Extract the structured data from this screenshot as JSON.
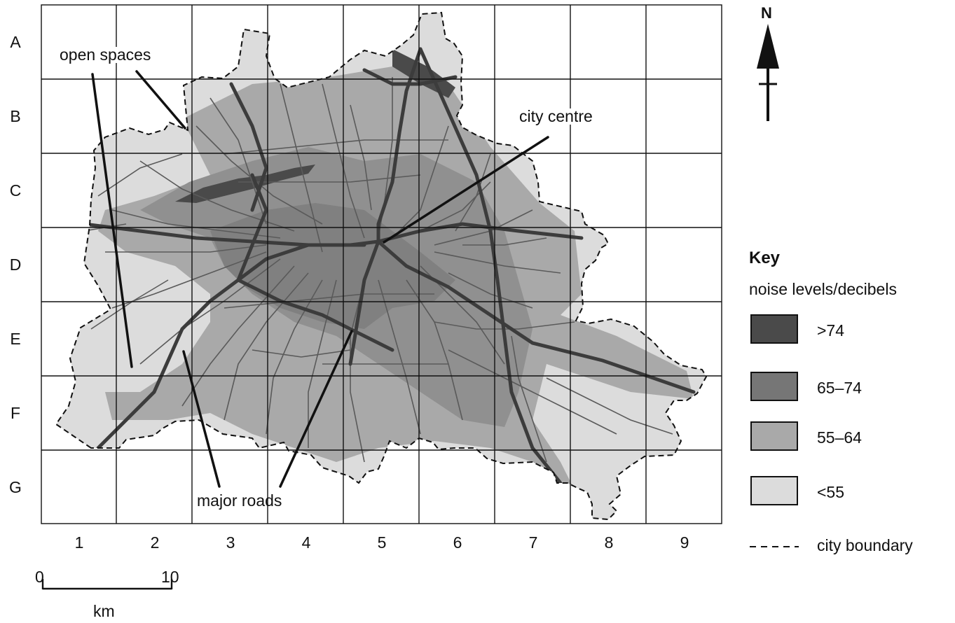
{
  "grid": {
    "rows": [
      "A",
      "B",
      "C",
      "D",
      "E",
      "F",
      "G"
    ],
    "columns": [
      "1",
      "2",
      "3",
      "4",
      "5",
      "6",
      "7",
      "8",
      "9"
    ]
  },
  "callouts": {
    "open_spaces": "open spaces",
    "city_centre": "city centre",
    "major_roads": "major roads"
  },
  "north_arrow": {
    "label": "N",
    "icon": "north-arrow-icon"
  },
  "key": {
    "title": "Key",
    "subtitle": "noise levels/decibels",
    "items": [
      {
        "label": ">74",
        "color": "#4a4a4a"
      },
      {
        "label": "65–74",
        "color": "#767676"
      },
      {
        "label": "55–64",
        "color": "#a9a9a9"
      },
      {
        "label": "<55",
        "color": "#dcdcdc"
      }
    ],
    "boundary_label": "city boundary"
  },
  "scale_bar": {
    "start": "0",
    "end": "10",
    "unit": "km"
  }
}
